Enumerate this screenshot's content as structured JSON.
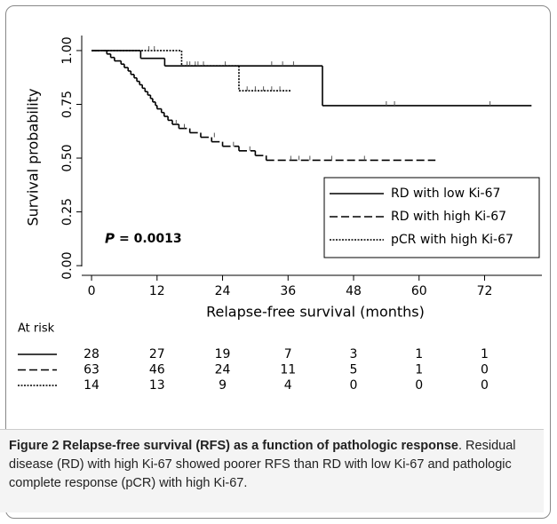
{
  "chart_data": {
    "type": "step",
    "y_label": "Survival probability",
    "x_label": "Relapse-free survival (months)",
    "annotation_p": "P",
    "annotation_value": "= 0.0013",
    "xlim": [
      -1.8,
      82.5
    ],
    "ylim": [
      -0.045,
      1.07
    ],
    "xticks": [
      0,
      12,
      24,
      36,
      48,
      60,
      72
    ],
    "yticks": [
      {
        "value": 0,
        "label": "0.00"
      },
      {
        "value": 0.25,
        "label": "0.25"
      },
      {
        "value": 0.5,
        "label": "0.50"
      },
      {
        "value": 0.75,
        "label": "0.75"
      },
      {
        "value": 1,
        "label": "1.00"
      }
    ],
    "legend": "lower right",
    "series": [
      {
        "name": "RD with low Ki-67",
        "color": "#000000",
        "dash": "solid",
        "x": [
          0,
          9,
          13.4,
          42.3,
          80.6
        ],
        "values": [
          1,
          0.964,
          0.929,
          0.744,
          0.744
        ],
        "censored": {
          "x": [
            17.5,
            19,
            20.5,
            24.5,
            33,
            35,
            37,
            54,
            55.5,
            73
          ],
          "y": [
            0.929,
            0.929,
            0.929,
            0.929,
            0.929,
            0.929,
            0.929,
            0.744,
            0.744,
            0.744
          ]
        }
      },
      {
        "name": "RD with high Ki-67",
        "color": "#000000",
        "dash": "dashed",
        "x": [
          0,
          2.8,
          3.5,
          4.2,
          5.4,
          6,
          6.7,
          7.2,
          7.8,
          8.3,
          8.8,
          9.3,
          9.8,
          10.3,
          10.8,
          11.2,
          11.7,
          12,
          12.8,
          13.3,
          14,
          14.8,
          16,
          18,
          20,
          22,
          24,
          27,
          30,
          32,
          63
        ],
        "values": [
          1,
          0.984,
          0.968,
          0.952,
          0.937,
          0.921,
          0.905,
          0.889,
          0.873,
          0.857,
          0.841,
          0.825,
          0.809,
          0.793,
          0.777,
          0.761,
          0.745,
          0.729,
          0.712,
          0.694,
          0.676,
          0.657,
          0.638,
          0.618,
          0.597,
          0.576,
          0.555,
          0.534,
          0.512,
          0.49,
          0.49
        ],
        "censored": {
          "x": [
            15.5,
            17,
            22.5,
            26,
            29,
            36.5,
            38,
            40,
            44,
            50
          ],
          "y": [
            0.657,
            0.638,
            0.597,
            0.555,
            0.534,
            0.49,
            0.49,
            0.49,
            0.49,
            0.49
          ]
        }
      },
      {
        "name": "pCR with high Ki-67",
        "color": "#000000",
        "dash": "dotted",
        "x": [
          0,
          16.5,
          27,
          36.5
        ],
        "values": [
          1,
          0.929,
          0.813,
          0.813
        ],
        "censored": {
          "x": [
            10.5,
            11.5,
            18,
            19.5,
            28.5,
            30,
            31.5,
            33,
            34.5
          ],
          "y": [
            1,
            1,
            0.929,
            0.929,
            0.813,
            0.813,
            0.813,
            0.813,
            0.813
          ]
        }
      }
    ],
    "at_risk": {
      "title": "At risk",
      "rows": [
        [
          28,
          27,
          19,
          7,
          3,
          1,
          1
        ],
        [
          63,
          46,
          24,
          11,
          5,
          1,
          0
        ],
        [
          14,
          13,
          9,
          4,
          0,
          0,
          0
        ]
      ]
    }
  },
  "caption": {
    "title": "Figure 2 Relapse-free survival (RFS) as a function of pathologic response",
    "text": ". Residual disease (RD) with high Ki-67 showed poorer RFS than RD with low Ki-67 and pathologic complete response (pCR) with high Ki-67."
  }
}
